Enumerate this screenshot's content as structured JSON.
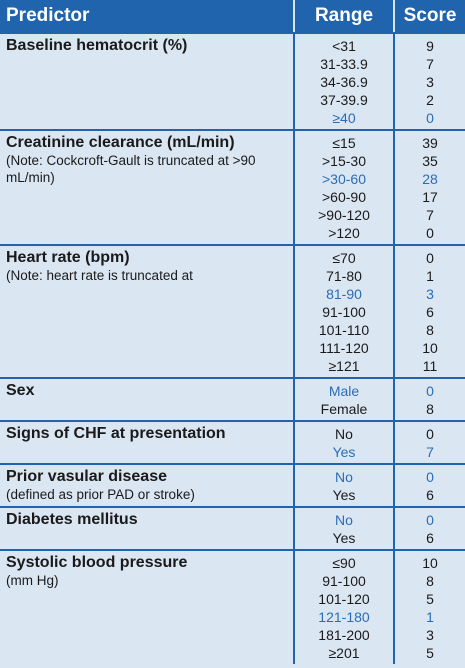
{
  "header": {
    "predictor": "Predictor",
    "range": "Range",
    "score": "Score"
  },
  "rows": [
    {
      "predictor": "Baseline hematocrit (%)",
      "ranges": [
        "<31",
        "31-33.9",
        "34-36.9",
        "37-39.9",
        "≥40"
      ],
      "scores": [
        "9",
        "7",
        "3",
        "2",
        "0"
      ],
      "highlight": 4
    },
    {
      "predictor": "Creatinine clearance (mL/min)",
      "note": "(Note: Cockcroft-Gault is truncated at >90 mL/min)",
      "ranges": [
        "≤15",
        ">15-30",
        ">30-60",
        ">60-90",
        ">90-120",
        ">120"
      ],
      "scores": [
        "39",
        "35",
        "28",
        "17",
        "7",
        "0"
      ],
      "highlight": 2
    },
    {
      "predictor": "Heart rate (bpm)",
      "note": "(Note: heart rate is truncated at",
      "ranges": [
        "≤70",
        "71-80",
        "81-90",
        "91-100",
        "101-110",
        "111-120",
        "≥121"
      ],
      "scores": [
        "0",
        "1",
        "3",
        "6",
        "8",
        "10",
        "11"
      ],
      "highlight": 2
    },
    {
      "predictor": "Sex",
      "ranges": [
        "Male",
        "Female"
      ],
      "scores": [
        "0",
        "8"
      ],
      "highlight": 0
    },
    {
      "predictor": "Signs of CHF at presentation",
      "ranges": [
        "No",
        "Yes"
      ],
      "scores": [
        "0",
        "7"
      ],
      "highlight": 1
    },
    {
      "predictor": "Prior vasular disease",
      "note": "(defined as prior PAD or stroke)",
      "ranges": [
        "No",
        "Yes"
      ],
      "scores": [
        "0",
        "6"
      ],
      "highlight": 0
    },
    {
      "predictor": "Diabetes mellitus",
      "ranges": [
        "No",
        "Yes"
      ],
      "scores": [
        "0",
        "6"
      ],
      "highlight": 0
    },
    {
      "predictor": "Systolic blood pressure",
      "note": "(mm Hg)",
      "ranges": [
        "≤90",
        "91-100",
        "101-120",
        "121-180",
        "181-200",
        "≥201"
      ],
      "scores": [
        "10",
        "8",
        "5",
        "1",
        "3",
        "5"
      ],
      "highlight": 3
    }
  ]
}
